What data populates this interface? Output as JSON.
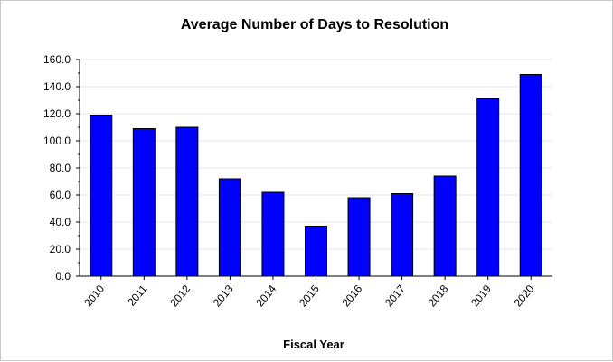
{
  "chart_data": {
    "type": "bar",
    "title": "Average Number of Days to Resolution",
    "xlabel": "Fiscal Year",
    "ylabel": "",
    "categories": [
      "2010",
      "2011",
      "2012",
      "2013",
      "2014",
      "2015",
      "2016",
      "2017",
      "2018",
      "2019",
      "2020"
    ],
    "values": [
      119,
      109,
      110,
      72,
      62,
      37,
      58,
      61,
      74,
      131,
      149
    ],
    "ylim": [
      0,
      160
    ],
    "yticks": [
      "0.0",
      "20.0",
      "40.0",
      "60.0",
      "80.0",
      "100.0",
      "120.0",
      "140.0",
      "160.0"
    ],
    "ytick_values": [
      0,
      20,
      40,
      60,
      80,
      100,
      120,
      140,
      160
    ],
    "grid": true,
    "legend": "none",
    "bar_color": "#0000ff",
    "bar_edge_color": "#000000"
  }
}
